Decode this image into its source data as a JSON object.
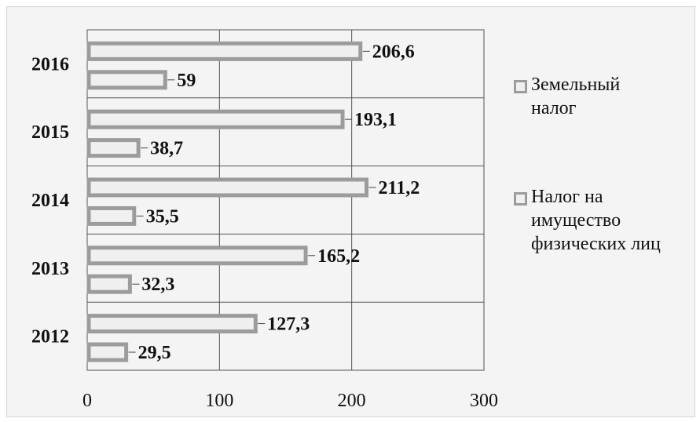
{
  "chart_data": {
    "type": "bar",
    "orientation": "horizontal",
    "categories": [
      "2012",
      "2013",
      "2014",
      "2015",
      "2016"
    ],
    "series": [
      {
        "name": "Земельный налог",
        "values": [
          127.3,
          165.2,
          211.2,
          193.1,
          206.6
        ]
      },
      {
        "name": "Налог на имущество физических лиц",
        "values": [
          29.5,
          32.3,
          35.5,
          38.7,
          59
        ]
      }
    ],
    "value_labels": [
      [
        "127,3",
        "165,2",
        "211,2",
        "193,1",
        "206,6"
      ],
      [
        "29,5",
        "32,3",
        "35,5",
        "38,7",
        "59"
      ]
    ],
    "xlim": [
      0,
      300
    ],
    "xticks": [
      0,
      100,
      200,
      300
    ],
    "xtick_labels": [
      "0",
      "100",
      "200",
      "300"
    ],
    "grid": true,
    "legend_position": "right",
    "title": "",
    "xlabel": "",
    "ylabel": ""
  },
  "colors": {
    "bar_border": "#9c9c9c",
    "bar_fill": "#f0f0f0",
    "grid": "#555555",
    "background": "#f4f4f4"
  },
  "legend": {
    "items": [
      {
        "lines": [
          "Земельный",
          "налог"
        ]
      },
      {
        "lines": [
          "Налог на",
          "имущество",
          "физических лиц"
        ]
      }
    ]
  }
}
